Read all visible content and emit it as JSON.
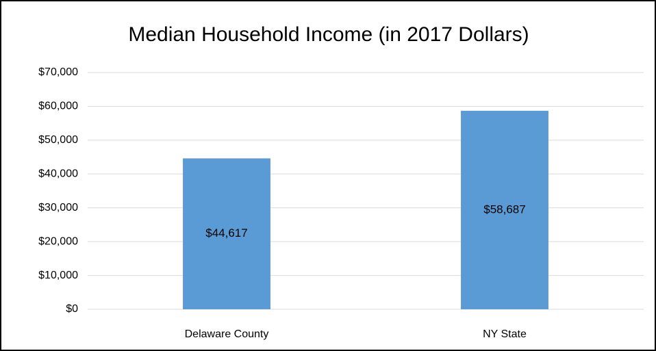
{
  "chart_data": {
    "type": "bar",
    "title": "Median Household Income (in 2017 Dollars)",
    "categories": [
      "Delaware County",
      "NY State"
    ],
    "values": [
      44617,
      58687
    ],
    "value_labels": [
      "$44,617",
      "$58,687"
    ],
    "color": "#5b9bd5",
    "ylim": [
      0,
      70000
    ],
    "yticks": [
      {
        "value": 0,
        "label": "$0"
      },
      {
        "value": 10000,
        "label": "$10,000"
      },
      {
        "value": 20000,
        "label": "$20,000"
      },
      {
        "value": 30000,
        "label": "$30,000"
      },
      {
        "value": 40000,
        "label": "$40,000"
      },
      {
        "value": 50000,
        "label": "$50,000"
      },
      {
        "value": 60000,
        "label": "$60,000"
      },
      {
        "value": 70000,
        "label": "$70,000"
      }
    ],
    "grid": true
  }
}
